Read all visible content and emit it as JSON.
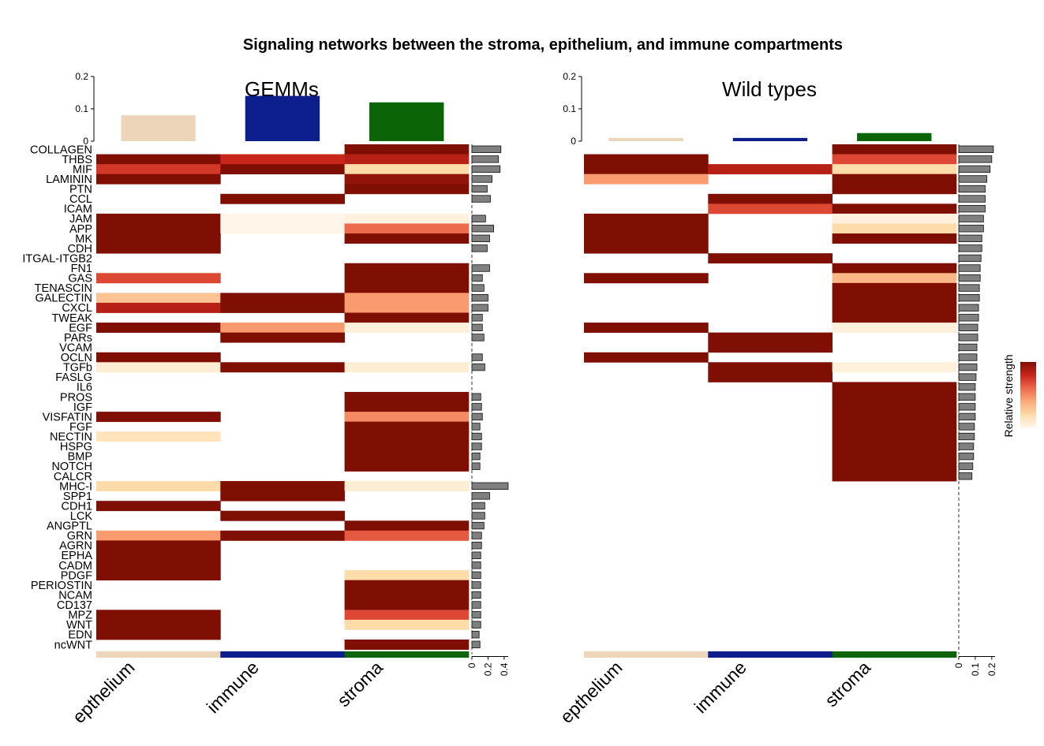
{
  "title": "Signaling networks between the stroma, epithelium, and immune compartments",
  "chart_data": {
    "type": "heatmap",
    "rows": [
      "COLLAGEN",
      "THBS",
      "MIF",
      "LAMININ",
      "PTN",
      "CCL",
      "ICAM",
      "JAM",
      "APP",
      "MK",
      "CDH",
      "ITGAL-ITGB2",
      "FN1",
      "GAS",
      "TENASCIN",
      "GALECTIN",
      "CXCL",
      "TWEAK",
      "EGF",
      "PARs",
      "VCAM",
      "OCLN",
      "TGFb",
      "FASLG",
      "IL6",
      "PROS",
      "IGF",
      "VISFATIN",
      "FGF",
      "NECTIN",
      "HSPG",
      "BMP",
      "NOTCH",
      "CALCR",
      "MHC-I",
      "SPP1",
      "CDH1",
      "LCK",
      "ANGPTL",
      "GRN",
      "AGRN",
      "EPHA",
      "CADM",
      "PDGF",
      "PERIOSTIN",
      "NCAM",
      "CD137",
      "MPZ",
      "WNT",
      "EDN",
      "ncWNT"
    ],
    "columns": [
      "epthelium",
      "immune",
      "stroma"
    ],
    "column_colors": [
      "#ecd5b9",
      "#0c1f8c",
      "#0b6405"
    ],
    "legend_title": "Relative strength",
    "color_scale": [
      "#fff8ef",
      "#fddcaa",
      "#fcaa7a",
      "#ee6a4d",
      "#c9261a",
      "#7f0e03"
    ],
    "panels": [
      {
        "title": "GEMMs",
        "top_axis": {
          "ticks": [
            0,
            0.1,
            0.2
          ],
          "tick_labels": [
            "0",
            "0.1",
            "0.2"
          ],
          "max": 0.2
        },
        "top_bars": [
          0.08,
          0.14,
          0.12
        ],
        "side_axis": {
          "ticks": [
            0,
            0.2,
            0.4
          ],
          "tick_labels": [
            "0",
            "0.2",
            "0.4"
          ],
          "max": 0.45
        },
        "side_bars": [
          0.36,
          0.33,
          0.35,
          0.25,
          0.19,
          0.23,
          0,
          0.17,
          0.27,
          0.22,
          0.19,
          0,
          0.22,
          0.13,
          0.15,
          0.2,
          0.2,
          0.13,
          0.13,
          0.15,
          0,
          0.13,
          0.16,
          0,
          0,
          0.11,
          0.12,
          0.13,
          0.1,
          0.12,
          0.12,
          0.1,
          0.1,
          0,
          0.45,
          0.22,
          0.16,
          0.16,
          0.15,
          0.12,
          0.12,
          0.11,
          0.11,
          0.11,
          0.11,
          0.11,
          0.11,
          0.11,
          0.11,
          0.09,
          0.1
        ],
        "values": [
          [
            0,
            0,
            1
          ],
          [
            1,
            0.8,
            0.85
          ],
          [
            0.75,
            1,
            0.2
          ],
          [
            1,
            0,
            0.95
          ],
          [
            0,
            0,
            1
          ],
          [
            0,
            1,
            0
          ],
          [
            0,
            0,
            0
          ],
          [
            1,
            0.02,
            0.05
          ],
          [
            1,
            0.02,
            0.6
          ],
          [
            1,
            0,
            1
          ],
          [
            1,
            0,
            0
          ],
          [
            0,
            0,
            0
          ],
          [
            0,
            0,
            1
          ],
          [
            0.7,
            0,
            1
          ],
          [
            0,
            0,
            1
          ],
          [
            0.3,
            1,
            0.45
          ],
          [
            0.85,
            1,
            0.45
          ],
          [
            0,
            0,
            1
          ],
          [
            1,
            0.45,
            0.06
          ],
          [
            0,
            1,
            0
          ],
          [
            0,
            0,
            0
          ],
          [
            1,
            0,
            0
          ],
          [
            0.08,
            1,
            0.08
          ],
          [
            0,
            0,
            0
          ],
          [
            0,
            0,
            0
          ],
          [
            0,
            0,
            1
          ],
          [
            0,
            0,
            1
          ],
          [
            1,
            0,
            0.5
          ],
          [
            0,
            0,
            1
          ],
          [
            0.15,
            0,
            1
          ],
          [
            0,
            0,
            1
          ],
          [
            0,
            0,
            1
          ],
          [
            0,
            0,
            1
          ],
          [
            0,
            0,
            0
          ],
          [
            0.2,
            1,
            0.08
          ],
          [
            0,
            1,
            0
          ],
          [
            1,
            0,
            0
          ],
          [
            0,
            1,
            0
          ],
          [
            0,
            0,
            1
          ],
          [
            0.45,
            1,
            0.65
          ],
          [
            1,
            0,
            0
          ],
          [
            1,
            0,
            0
          ],
          [
            1,
            0,
            0
          ],
          [
            1,
            0,
            0.2
          ],
          [
            0,
            0,
            1
          ],
          [
            0,
            0,
            1
          ],
          [
            0,
            0,
            1
          ],
          [
            1,
            0,
            0.7
          ],
          [
            1,
            0,
            0.2
          ],
          [
            1,
            0,
            0
          ],
          [
            0,
            0,
            1
          ]
        ]
      },
      {
        "title": "Wild types",
        "top_axis": {
          "ticks": [
            0,
            0.1,
            0.2
          ],
          "tick_labels": [
            "0",
            "0.1",
            "0.2"
          ],
          "max": 0.2
        },
        "top_bars": [
          0.01,
          0.01,
          0.025
        ],
        "side_axis": {
          "ticks": [
            0,
            0.1,
            0.2
          ],
          "tick_labels": [
            "0",
            "0.1",
            "0.2"
          ],
          "max": 0.22
        },
        "side_bars": [
          0.21,
          0.2,
          0.19,
          0.17,
          0.16,
          0.16,
          0.16,
          0.15,
          0.15,
          0.14,
          0.14,
          0.135,
          0.13,
          0.13,
          0.125,
          0.125,
          0.12,
          0.12,
          0.115,
          0.115,
          0.11,
          0.11,
          0.11,
          0.105,
          0.1,
          0.1,
          0.1,
          0.1,
          0.095,
          0.095,
          0.09,
          0.09,
          0.085,
          0.08,
          0,
          0,
          0,
          0,
          0,
          0,
          0,
          0,
          0,
          0,
          0,
          0,
          0,
          0,
          0,
          0,
          0
        ],
        "values": [
          [
            0,
            0,
            1
          ],
          [
            1,
            0,
            0.7
          ],
          [
            1,
            0.85,
            0.2
          ],
          [
            0.45,
            0,
            1
          ],
          [
            0,
            0,
            1
          ],
          [
            0,
            1,
            0
          ],
          [
            0,
            0.7,
            1
          ],
          [
            1,
            0,
            0.05
          ],
          [
            1,
            0,
            0.2
          ],
          [
            1,
            0,
            1
          ],
          [
            1,
            0,
            0
          ],
          [
            0,
            1,
            0
          ],
          [
            0,
            0,
            1
          ],
          [
            1,
            0,
            0.35
          ],
          [
            0,
            0,
            1
          ],
          [
            0,
            0,
            1
          ],
          [
            0,
            0,
            1
          ],
          [
            0,
            0,
            1
          ],
          [
            1,
            0,
            0.06
          ],
          [
            0,
            1,
            0
          ],
          [
            0,
            1,
            0
          ],
          [
            1,
            0,
            0
          ],
          [
            0,
            1,
            0.06
          ],
          [
            0,
            1,
            0
          ],
          [
            0,
            0,
            1
          ],
          [
            0,
            0,
            1
          ],
          [
            0,
            0,
            1
          ],
          [
            0,
            0,
            1
          ],
          [
            0,
            0,
            1
          ],
          [
            0,
            0,
            1
          ],
          [
            0,
            0,
            1
          ],
          [
            0,
            0,
            1
          ],
          [
            0,
            0,
            1
          ],
          [
            0,
            0,
            1
          ],
          [
            0,
            0,
            0
          ],
          [
            0,
            0,
            0
          ],
          [
            0,
            0,
            0
          ],
          [
            0,
            0,
            0
          ],
          [
            0,
            0,
            0
          ],
          [
            0,
            0,
            0
          ],
          [
            0,
            0,
            0
          ],
          [
            0,
            0,
            0
          ],
          [
            0,
            0,
            0
          ],
          [
            0,
            0,
            0
          ],
          [
            0,
            0,
            0
          ],
          [
            0,
            0,
            0
          ],
          [
            0,
            0,
            0
          ],
          [
            0,
            0,
            0
          ],
          [
            0,
            0,
            0
          ],
          [
            0,
            0,
            0
          ],
          [
            0,
            0,
            0
          ]
        ]
      }
    ]
  }
}
